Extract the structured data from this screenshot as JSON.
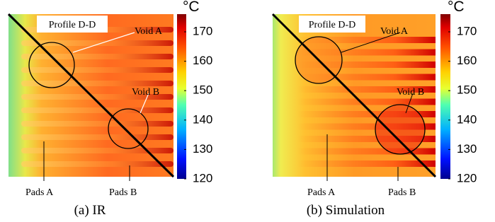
{
  "panels": [
    {
      "caption": "(a) IR",
      "profile": "Profile D-D",
      "void_a": "Void A",
      "void_b": "Void B",
      "pads_a": "Pads A",
      "pads_b": "Pads B",
      "colorbar": {
        "unit": "°C",
        "ticks": [
          120,
          130,
          140,
          150,
          160,
          170
        ]
      }
    },
    {
      "caption": "(b) Simulation",
      "profile": "Profile D-D",
      "void_a": "Void A",
      "void_b": "Void B",
      "pads_a": "Pads A",
      "pads_b": "Pads B",
      "colorbar": {
        "unit": "°C",
        "ticks": [
          120,
          130,
          140,
          150,
          160,
          170
        ]
      }
    }
  ]
}
